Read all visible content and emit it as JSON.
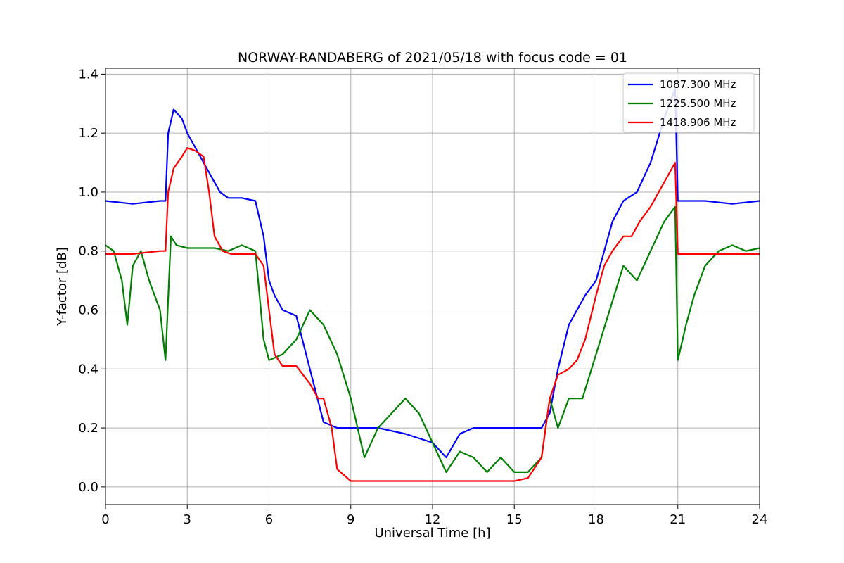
{
  "chart_data": {
    "type": "line",
    "title": "NORWAY-RANDABERG of 2021/05/18 with focus code = 01",
    "xlabel": "Universal Time [h]",
    "ylabel": "Y-factor [dB]",
    "xlim": [
      0,
      24
    ],
    "ylim": [
      -0.06,
      1.42
    ],
    "xticks": [
      0,
      3,
      6,
      9,
      12,
      15,
      18,
      21,
      24
    ],
    "yticks": [
      0.0,
      0.2,
      0.4,
      0.6,
      0.8,
      1.0,
      1.2,
      1.4
    ],
    "xtick_labels": [
      "0",
      "3",
      "6",
      "9",
      "12",
      "15",
      "18",
      "21",
      "24"
    ],
    "ytick_labels": [
      "0.0",
      "0.2",
      "0.4",
      "0.6",
      "0.8",
      "1.0",
      "1.2",
      "1.4"
    ],
    "grid": true,
    "legend_position": "top-right",
    "series": [
      {
        "name": "1087.300 MHz",
        "color": "#0000ff",
        "x": [
          0,
          1,
          2,
          2.2,
          2.3,
          2.5,
          2.8,
          3.0,
          3.3,
          3.6,
          3.9,
          4.2,
          4.5,
          5.0,
          5.5,
          5.8,
          6.0,
          6.2,
          6.5,
          7.0,
          7.5,
          8.0,
          8.5,
          9.0,
          10.0,
          11.0,
          12.0,
          12.5,
          13.0,
          13.5,
          14.0,
          15.0,
          15.5,
          16.0,
          16.3,
          16.6,
          17.0,
          17.3,
          17.6,
          18.0,
          18.3,
          18.6,
          19.0,
          19.5,
          20.0,
          20.5,
          20.9,
          21.0,
          22.0,
          23.0,
          24.0
        ],
        "y": [
          0.97,
          0.96,
          0.97,
          0.97,
          1.2,
          1.28,
          1.25,
          1.2,
          1.15,
          1.1,
          1.05,
          1.0,
          0.98,
          0.98,
          0.97,
          0.85,
          0.7,
          0.65,
          0.6,
          0.58,
          0.4,
          0.22,
          0.2,
          0.2,
          0.2,
          0.18,
          0.15,
          0.1,
          0.18,
          0.2,
          0.2,
          0.2,
          0.2,
          0.2,
          0.25,
          0.4,
          0.55,
          0.6,
          0.65,
          0.7,
          0.8,
          0.9,
          0.97,
          1.0,
          1.1,
          1.25,
          1.35,
          0.97,
          0.97,
          0.96,
          0.97
        ]
      },
      {
        "name": "1225.500 MHz",
        "color": "#008000",
        "x": [
          0,
          0.3,
          0.6,
          0.8,
          1.0,
          1.3,
          1.6,
          2.0,
          2.2,
          2.4,
          2.6,
          3.0,
          3.5,
          4.0,
          4.5,
          5.0,
          5.5,
          5.8,
          6.0,
          6.5,
          7.0,
          7.5,
          8.0,
          8.5,
          9.0,
          9.5,
          10.0,
          10.5,
          11.0,
          11.5,
          12.0,
          12.5,
          13.0,
          13.5,
          14.0,
          14.5,
          15.0,
          15.5,
          16.0,
          16.3,
          16.6,
          17.0,
          17.5,
          18.0,
          18.5,
          19.0,
          19.5,
          20.0,
          20.5,
          20.9,
          21.0,
          21.3,
          21.6,
          22.0,
          22.5,
          23.0,
          23.5,
          24.0
        ],
        "y": [
          0.82,
          0.8,
          0.7,
          0.55,
          0.75,
          0.8,
          0.7,
          0.6,
          0.43,
          0.85,
          0.82,
          0.81,
          0.81,
          0.81,
          0.8,
          0.82,
          0.8,
          0.5,
          0.43,
          0.45,
          0.5,
          0.6,
          0.55,
          0.45,
          0.3,
          0.1,
          0.2,
          0.25,
          0.3,
          0.25,
          0.15,
          0.05,
          0.12,
          0.1,
          0.05,
          0.1,
          0.05,
          0.05,
          0.1,
          0.3,
          0.2,
          0.3,
          0.3,
          0.45,
          0.6,
          0.75,
          0.7,
          0.8,
          0.9,
          0.95,
          0.43,
          0.55,
          0.65,
          0.75,
          0.8,
          0.82,
          0.8,
          0.81
        ]
      },
      {
        "name": "1418.906 MHz",
        "color": "#ff0000",
        "x": [
          0,
          1,
          2,
          2.2,
          2.3,
          2.5,
          2.8,
          3.0,
          3.3,
          3.6,
          3.8,
          4.0,
          4.3,
          4.6,
          5.0,
          5.5,
          5.8,
          6.0,
          6.2,
          6.5,
          7.0,
          7.5,
          7.8,
          8.0,
          8.3,
          8.5,
          9.0,
          10.0,
          11.0,
          12.0,
          13.0,
          14.0,
          15.0,
          15.5,
          16.0,
          16.3,
          16.6,
          17.0,
          17.3,
          17.6,
          18.0,
          18.3,
          18.6,
          19.0,
          19.3,
          19.6,
          20.0,
          20.3,
          20.6,
          20.9,
          21.0,
          22.0,
          23.0,
          24.0
        ],
        "y": [
          0.79,
          0.79,
          0.8,
          0.8,
          1.0,
          1.08,
          1.12,
          1.15,
          1.14,
          1.12,
          1.0,
          0.85,
          0.8,
          0.79,
          0.79,
          0.79,
          0.75,
          0.6,
          0.45,
          0.41,
          0.41,
          0.35,
          0.3,
          0.3,
          0.2,
          0.06,
          0.02,
          0.02,
          0.02,
          0.02,
          0.02,
          0.02,
          0.02,
          0.03,
          0.1,
          0.3,
          0.38,
          0.4,
          0.43,
          0.5,
          0.65,
          0.75,
          0.8,
          0.85,
          0.85,
          0.9,
          0.95,
          1.0,
          1.05,
          1.1,
          0.79,
          0.79,
          0.79,
          0.79
        ]
      }
    ]
  }
}
